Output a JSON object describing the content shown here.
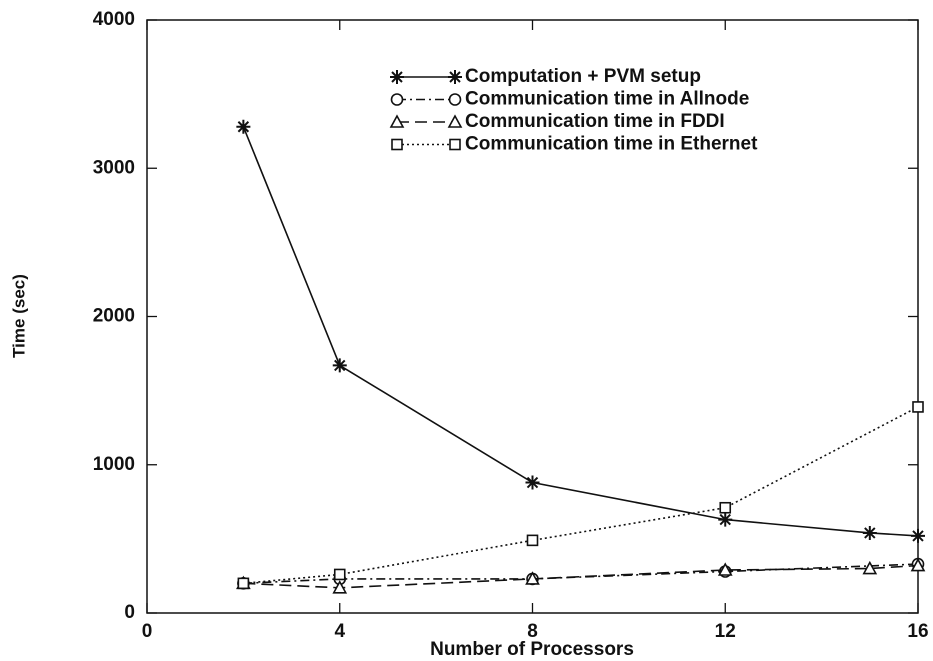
{
  "chart_data": {
    "type": "line",
    "x_label": "Number of Processors",
    "y_label": "Time (sec)",
    "xlim": [
      0,
      16
    ],
    "xticks": [
      0,
      4,
      8,
      12,
      16
    ],
    "ylim": [
      0,
      4000
    ],
    "yticks": [
      0,
      1000,
      2000,
      3000,
      4000
    ],
    "legend": "upper right",
    "series": [
      {
        "name": "Computation + PVM setup",
        "color": "#111111",
        "marker": "star",
        "line_style": "solid",
        "x": [
          2,
          4,
          8,
          12,
          15,
          16
        ],
        "values": [
          3280,
          1670,
          880,
          630,
          540,
          520
        ]
      },
      {
        "name": "Communication time in Allnode",
        "color": "#111111",
        "marker": "circle",
        "line_style": "dashdot",
        "x": [
          2,
          4,
          8,
          12,
          16
        ],
        "values": [
          200,
          230,
          230,
          280,
          330
        ]
      },
      {
        "name": "Communication time in FDDI",
        "color": "#111111",
        "marker": "triangle",
        "line_style": "dashed",
        "x": [
          2,
          4,
          8,
          12,
          15,
          16
        ],
        "values": [
          200,
          170,
          230,
          290,
          300,
          320
        ]
      },
      {
        "name": "Communication time in Ethernet",
        "color": "#111111",
        "marker": "square",
        "line_style": "dotted",
        "x": [
          2,
          4,
          8,
          12,
          16
        ],
        "values": [
          200,
          260,
          490,
          710,
          1390
        ]
      }
    ]
  }
}
